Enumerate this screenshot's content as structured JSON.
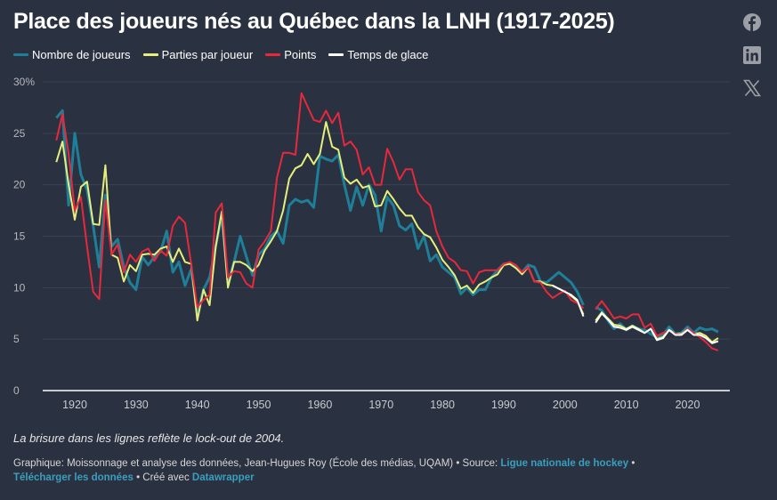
{
  "title": "Place des joueurs nés au Québec dans la LNH (1917-2025)",
  "social": [
    {
      "icon": "facebook-icon"
    },
    {
      "icon": "linkedin-icon"
    },
    {
      "icon": "x-twitter-icon"
    }
  ],
  "note": "La brisure dans les lignes reflète le lock-out de 2004.",
  "credits": {
    "prefix": "Graphique: Moissonnage et analyse des données, Jean-Hugues Roy (École des médias, UQAM) • Source: ",
    "source_link": "Ligue nationale de hockey",
    "sep1": " •",
    "download_link": "Télécharger les données",
    "sep2": " • Créé avec ",
    "tool_link": "Datawrapper"
  },
  "chart_data": {
    "type": "line",
    "title": "Place des joueurs nés au Québec dans la LNH (1917-2025)",
    "xlabel": "",
    "ylabel": "",
    "ylim": [
      0,
      30
    ],
    "xlim": [
      1916,
      2027
    ],
    "y_ticks": [
      0,
      5,
      10,
      15,
      20,
      25,
      30
    ],
    "y_tick_labels": [
      "0",
      "5",
      "10",
      "15",
      "20",
      "25",
      "30%"
    ],
    "x_ticks": [
      1920,
      1930,
      1940,
      1950,
      1960,
      1970,
      1980,
      1990,
      2000,
      2010,
      2020
    ],
    "x_tick_labels": [
      "1920",
      "1930",
      "1940",
      "1950",
      "1960",
      "1970",
      "1980",
      "1990",
      "2000",
      "2010",
      "2020"
    ],
    "grid": "horizontal",
    "legend_position": "top-left",
    "x": [
      1917,
      1918,
      1919,
      1920,
      1921,
      1922,
      1923,
      1924,
      1925,
      1926,
      1927,
      1928,
      1929,
      1930,
      1931,
      1932,
      1933,
      1934,
      1935,
      1936,
      1937,
      1938,
      1939,
      1940,
      1941,
      1942,
      1943,
      1944,
      1945,
      1946,
      1947,
      1948,
      1949,
      1950,
      1951,
      1952,
      1953,
      1954,
      1955,
      1956,
      1957,
      1958,
      1959,
      1960,
      1961,
      1962,
      1963,
      1964,
      1965,
      1966,
      1967,
      1968,
      1969,
      1970,
      1971,
      1972,
      1973,
      1974,
      1975,
      1976,
      1977,
      1978,
      1979,
      1980,
      1981,
      1982,
      1983,
      1984,
      1985,
      1986,
      1987,
      1988,
      1989,
      1990,
      1991,
      1992,
      1993,
      1994,
      1995,
      1996,
      1997,
      1998,
      1999,
      2000,
      2001,
      2002,
      2003,
      2004,
      2005,
      2006,
      2007,
      2008,
      2009,
      2010,
      2011,
      2012,
      2013,
      2014,
      2015,
      2016,
      2017,
      2018,
      2019,
      2020,
      2021,
      2022,
      2023,
      2024,
      2025
    ],
    "series": [
      {
        "name": "Nombre de joueurs",
        "color": "#1f7e98",
        "values": [
          26.5,
          27.2,
          18,
          25,
          21,
          19.5,
          16,
          12,
          19,
          14,
          14.7,
          12,
          10.5,
          9.8,
          13,
          12.2,
          13,
          13.5,
          15.5,
          11.5,
          12.5,
          10.2,
          11.8,
          7.5,
          9.8,
          11,
          14,
          17,
          10.5,
          12.5,
          15,
          13,
          11.2,
          13.2,
          13.8,
          15,
          15.5,
          14.3,
          18,
          18.6,
          18.3,
          18.5,
          17.8,
          22.8,
          22.5,
          22.3,
          22.9,
          20,
          17.5,
          19.8,
          18,
          20,
          19,
          15.5,
          18.8,
          18,
          16,
          15.6,
          16.2,
          13.8,
          15,
          12.6,
          13.2,
          12,
          11.5,
          11,
          9.4,
          10,
          9.3,
          9.8,
          9.8,
          11,
          11.7,
          12.3,
          12.4,
          12,
          11.5,
          12.2,
          12,
          10.6,
          10.5,
          11,
          11.5,
          11,
          10.5,
          9.6,
          8.3,
          null,
          8.1,
          7.8,
          6.8,
          6,
          6.5,
          5.9,
          6.3,
          6,
          5.9,
          5.5,
          5.2,
          5.4,
          6.2,
          5.5,
          5.6,
          6.2,
          5.6,
          6.1,
          5.9,
          6,
          5.7
        ]
      },
      {
        "name": "Parties par joueur",
        "color": "#e6ef7c",
        "values": [
          22.2,
          24.2,
          20,
          16.6,
          19.8,
          20.3,
          16.2,
          16.1,
          21.9,
          13.2,
          12.9,
          10.6,
          12.2,
          11.6,
          13.2,
          13.3,
          13.2,
          13.8,
          14,
          12.5,
          13.8,
          12.5,
          12.3,
          6.8,
          9.8,
          8.3,
          14,
          17.4,
          10,
          12.5,
          12.5,
          12.2,
          11.6,
          12.2,
          13.6,
          14.5,
          15.5,
          17.5,
          20.6,
          21.6,
          21.9,
          23,
          22,
          23,
          26.1,
          23.7,
          23.4,
          20.7,
          20.1,
          20.5,
          19.7,
          19.9,
          17.9,
          18,
          19.4,
          18.6,
          17.7,
          17,
          17,
          15.9,
          15.2,
          14.9,
          13.9,
          12.7,
          12,
          11.2,
          9.9,
          10.2,
          9.5,
          10.3,
          10.6,
          11,
          11.3,
          12.2,
          12.3,
          11.9,
          11.3,
          12,
          10.6,
          10.6,
          10.3,
          10.2,
          9.9,
          9.6,
          9.2,
          8.7,
          7.4,
          null,
          6.8,
          7.6,
          7,
          6.4,
          6.3,
          6,
          6.3,
          6,
          5.6,
          6,
          5,
          5.2,
          5.9,
          5.5,
          5.5,
          6,
          5.5,
          5.6,
          5.3,
          4.7,
          5.1
        ]
      },
      {
        "name": "Points",
        "color": "#e8283c",
        "values": [
          24.3,
          26.9,
          23,
          17.5,
          18.8,
          14,
          9.6,
          8.9,
          18.5,
          13.2,
          14.2,
          11.5,
          13.2,
          12.5,
          13.5,
          13.8,
          12.6,
          13.6,
          13.1,
          16,
          16.9,
          16.3,
          12.3,
          8.1,
          8.8,
          9.3,
          17.3,
          18.2,
          11,
          11.6,
          11.5,
          10.4,
          10,
          13.7,
          14.5,
          15.5,
          20.7,
          23.1,
          23.1,
          22.9,
          28.9,
          27.6,
          26.3,
          26.1,
          27.2,
          26,
          27,
          23.8,
          24.2,
          23.4,
          21,
          21.7,
          20,
          20,
          23.5,
          22.2,
          20.5,
          21.5,
          21.5,
          19.3,
          18.5,
          18,
          15.5,
          14,
          12.9,
          12.5,
          11.7,
          11.6,
          10.4,
          11.5,
          11.7,
          11.7,
          11.7,
          12.3,
          12.5,
          12.2,
          11.5,
          12,
          10.6,
          10.5,
          9.6,
          9,
          9.4,
          9.7,
          8.8,
          8.5,
          8,
          null,
          7.9,
          8.7,
          7.9,
          7,
          7.2,
          7,
          7.4,
          7.4,
          6.1,
          6.5,
          5.3,
          5.6,
          5.8,
          5.5,
          5.4,
          6,
          5.6,
          5.2,
          4.7,
          4.1,
          3.9
        ]
      },
      {
        "name": "Temps de glace",
        "color": "#ffffff",
        "x": [
          1998,
          1999,
          2000,
          2001,
          2002,
          2003,
          2004,
          2005,
          2006,
          2007,
          2008,
          2009,
          2010,
          2011,
          2012,
          2013,
          2014,
          2015,
          2016,
          2017,
          2018,
          2019,
          2020,
          2021,
          2022,
          2023,
          2024,
          2025
        ],
        "values": [
          10.2,
          9.9,
          9.6,
          9.3,
          8.8,
          7.2,
          null,
          6.6,
          7.5,
          6.9,
          6.2,
          6.1,
          5.9,
          6.2,
          5.9,
          5.6,
          6,
          4.9,
          5.1,
          5.9,
          5.4,
          5.4,
          5.9,
          5.4,
          5.4,
          5.1,
          4.6,
          4.8
        ]
      }
    ]
  }
}
